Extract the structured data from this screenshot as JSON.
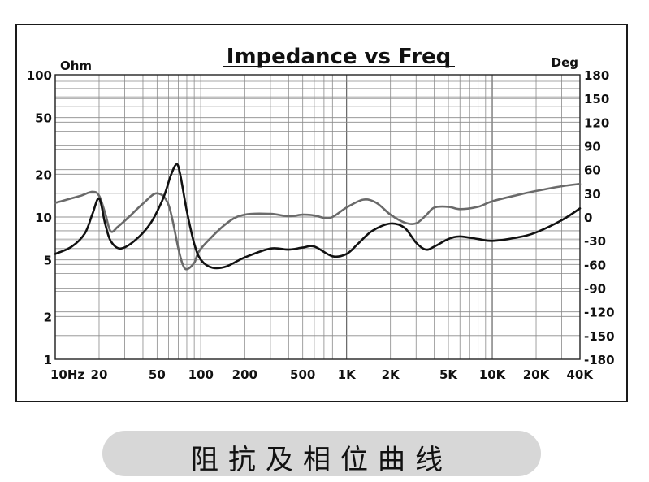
{
  "caption": "阻抗及相位曲线",
  "chart_data": {
    "type": "line",
    "title": "Impedance vs Freq",
    "y_left_unit": "Ohm",
    "y_right_unit": "Deg",
    "x_scale": "log",
    "y_left_scale": "log",
    "xlim": [
      10,
      40000
    ],
    "ylim_left": [
      1,
      100
    ],
    "ylim_right": [
      -180,
      180
    ],
    "grid": true,
    "x_ticks": [
      {
        "v": 10,
        "label": "10Hz"
      },
      {
        "v": 20,
        "label": "20"
      },
      {
        "v": 50,
        "label": "50"
      },
      {
        "v": 100,
        "label": "100"
      },
      {
        "v": 200,
        "label": "200"
      },
      {
        "v": 500,
        "label": "500"
      },
      {
        "v": 1000,
        "label": "1K"
      },
      {
        "v": 2000,
        "label": "2K"
      },
      {
        "v": 5000,
        "label": "5K"
      },
      {
        "v": 10000,
        "label": "10K"
      },
      {
        "v": 20000,
        "label": "20K"
      },
      {
        "v": 40000,
        "label": "40K"
      }
    ],
    "y_left_ticks": [
      {
        "v": 1,
        "label": "1"
      },
      {
        "v": 2,
        "label": "2"
      },
      {
        "v": 5,
        "label": "5"
      },
      {
        "v": 10,
        "label": "10"
      },
      {
        "v": 20,
        "label": "20"
      },
      {
        "v": 50,
        "label": "50"
      },
      {
        "v": 100,
        "label": "100"
      }
    ],
    "y_right_ticks": [
      {
        "v": 180,
        "label": "180"
      },
      {
        "v": 150,
        "label": "150"
      },
      {
        "v": 120,
        "label": "120"
      },
      {
        "v": 90,
        "label": "90"
      },
      {
        "v": 60,
        "label": "60"
      },
      {
        "v": 30,
        "label": "30"
      },
      {
        "v": 0,
        "label": "0"
      },
      {
        "v": -30,
        "label": "-30"
      },
      {
        "v": -60,
        "label": "-60"
      },
      {
        "v": -90,
        "label": "-90"
      },
      {
        "v": -120,
        "label": "-120"
      },
      {
        "v": -150,
        "label": "-150"
      },
      {
        "v": -180,
        "label": "-180"
      }
    ],
    "series": [
      {
        "axis": "left",
        "color": "#111111",
        "x": [
          10,
          13,
          16,
          18,
          20,
          22,
          24,
          28,
          35,
          45,
          55,
          62,
          68,
          72,
          80,
          90,
          100,
          120,
          150,
          200,
          300,
          400,
          500,
          600,
          800,
          1000,
          1200,
          1500,
          2000,
          2500,
          3000,
          3500,
          4000,
          5000,
          6000,
          8000,
          10000,
          15000,
          20000,
          30000,
          40000
        ],
        "values": [
          5.5,
          6.2,
          7.7,
          10.5,
          13.5,
          9.0,
          6.8,
          6.0,
          6.8,
          9.0,
          13.5,
          19.5,
          23.5,
          20.0,
          11.0,
          6.5,
          5.0,
          4.4,
          4.5,
          5.2,
          6.0,
          5.9,
          6.1,
          6.2,
          5.3,
          5.5,
          6.5,
          8.0,
          9.0,
          8.4,
          6.6,
          5.9,
          6.2,
          7.0,
          7.3,
          7.0,
          6.8,
          7.2,
          7.8,
          9.5,
          11.5
        ]
      },
      {
        "axis": "right",
        "color": "#6a6a6a",
        "x": [
          10,
          12,
          15,
          18,
          20,
          22,
          24,
          27,
          32,
          40,
          50,
          60,
          70,
          75,
          80,
          90,
          100,
          150,
          200,
          300,
          400,
          500,
          600,
          700,
          800,
          1000,
          1300,
          1600,
          2000,
          2500,
          3000,
          3500,
          4000,
          5000,
          6000,
          8000,
          10000,
          15000,
          20000,
          30000,
          40000
        ],
        "values": [
          18,
          22,
          27,
          32,
          27,
          5,
          -18,
          -12,
          0,
          17,
          30,
          15,
          -40,
          -60,
          -66,
          -58,
          -40,
          -8,
          3,
          4,
          1,
          3,
          2,
          -1,
          0,
          12,
          22,
          18,
          3,
          -7,
          -8,
          2,
          12,
          13,
          10,
          13,
          20,
          28,
          33,
          39,
          42
        ]
      }
    ]
  }
}
